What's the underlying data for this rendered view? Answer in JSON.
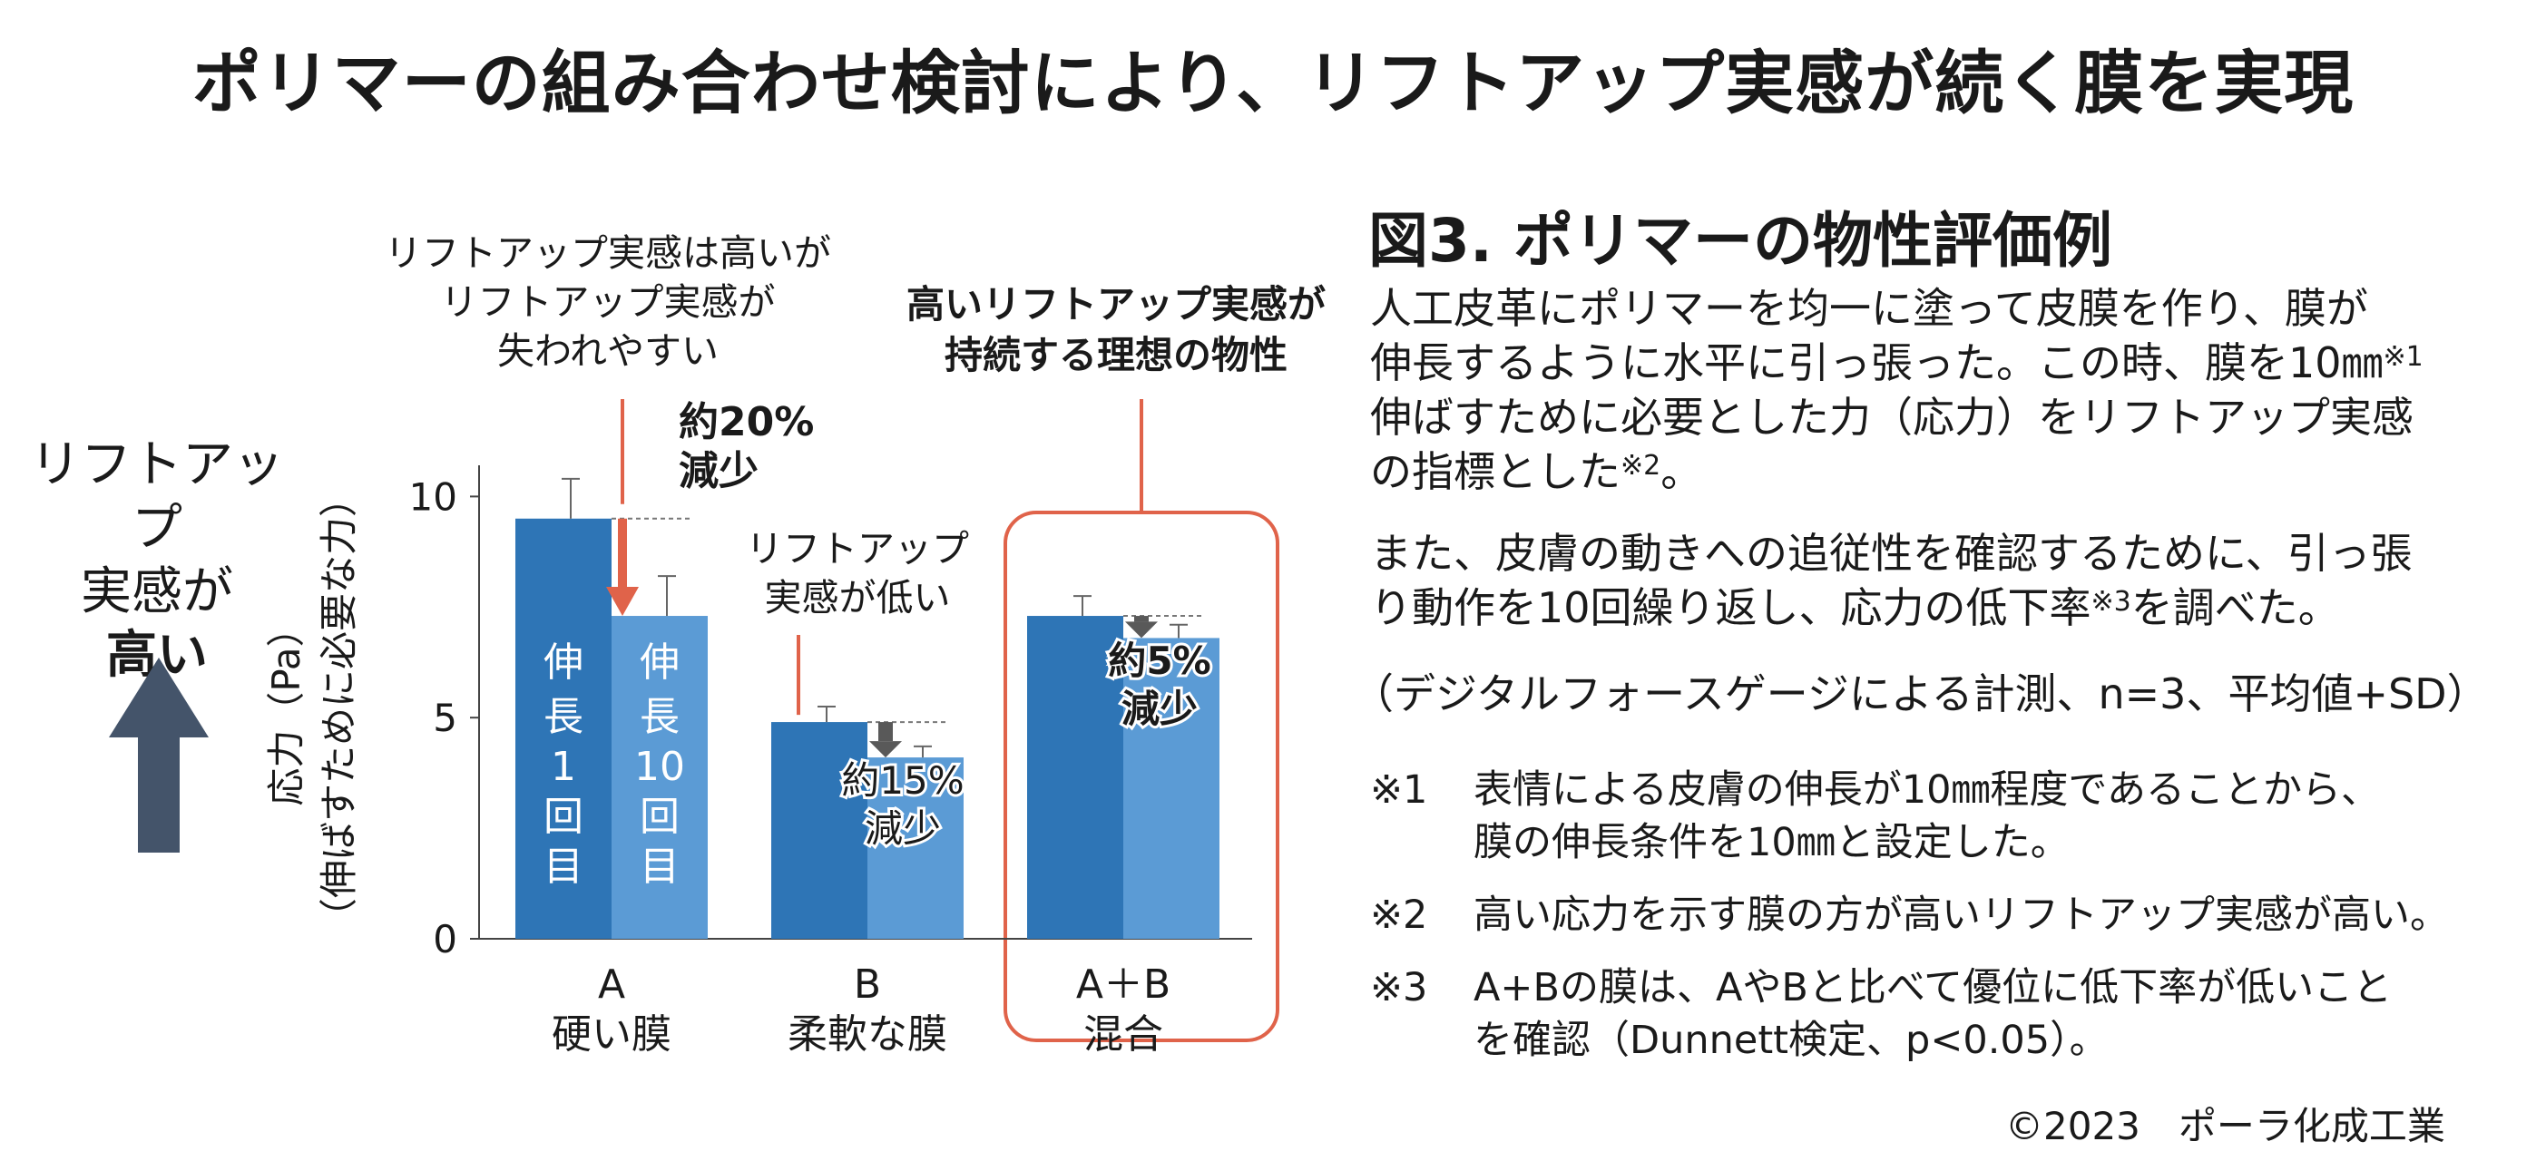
{
  "title": "ポリマーの組み合わせ検討により、リフトアップ実感が続く膜を実現",
  "side_label": {
    "line1": "リフトアップ",
    "line2": "実感が",
    "line3": "高い"
  },
  "colors": {
    "bar_dark": "#2E75B6",
    "bar_light": "#5B9BD5",
    "highlight": "#E0634A",
    "down_arrow": "#595959",
    "big_arrow": "#44546A"
  },
  "chart_data": {
    "type": "bar",
    "ylabel": "応力（Pa）",
    "ylabel_sub": "（伸ばすために必要な力）",
    "ylim": [
      0,
      10.5
    ],
    "yticks": [
      0,
      5,
      10
    ],
    "ytick_labels": [
      "0",
      "5",
      "10"
    ],
    "categories": [
      {
        "line1": "A",
        "line2": "硬い膜"
      },
      {
        "line1": "B",
        "line2": "柔軟な膜"
      },
      {
        "line1": "A＋B",
        "line2": "混合"
      }
    ],
    "series": [
      {
        "name": "伸長1回目",
        "values": [
          9.5,
          4.9,
          7.3
        ],
        "errors": [
          0.9,
          0.35,
          0.45
        ]
      },
      {
        "name": "伸長10回目",
        "values": [
          7.3,
          4.1,
          6.8
        ],
        "errors": [
          0.9,
          0.25,
          0.3
        ]
      }
    ],
    "bar_labels": {
      "first": [
        "伸",
        "長",
        "1",
        "回",
        "目"
      ],
      "tenth": [
        "伸",
        "長",
        "10",
        "回",
        "目"
      ]
    },
    "reductions": [
      {
        "line1": "約20%",
        "line2": "減少"
      },
      {
        "line1": "約15%",
        "line2": "減少"
      },
      {
        "line1": "約5%",
        "line2": "減少"
      }
    ],
    "annotations": {
      "a": {
        "line1": "リフトアップ実感は高いが",
        "line2": "リフトアップ実感が",
        "line3": "失われやすい"
      },
      "b": {
        "line1": "リフトアップ",
        "line2": "実感が低い"
      },
      "ab": {
        "line1": "高いリフトアップ実感が",
        "line2": "持続する理想の物性"
      }
    },
    "grid": false
  },
  "figure": {
    "title": "図3. ポリマーの物性評価例",
    "desc": {
      "l1": "人工皮革にポリマーを均一に塗って皮膜を作り、膜が",
      "l2": "伸長するように水平に引っ張った。この時、膜を10㎜",
      "l2_sup": "※1",
      "l3": "伸ばすために必要とした力（応力）をリフトアップ実感",
      "l4": "の指標とした",
      "l4_sup": "※2",
      "l4_end": "。",
      "l5": "また、皮膚の動きへの追従性を確認するために、引っ張",
      "l6": "り動作を10回繰り返し、応力の低下率",
      "l6_sup": "※3",
      "l6_end": "を調べた。",
      "method": "（デジタルフォースゲージによる計測、n=3、平均値+SD）"
    },
    "footnotes": [
      {
        "mark": "※1",
        "line1": "表情による皮膚の伸長が10㎜程度であることから、",
        "line2": "膜の伸長条件を10㎜と設定した。"
      },
      {
        "mark": "※2",
        "line1": "高い応力を示す膜の方が高いリフトアップ実感が高い。",
        "line2": ""
      },
      {
        "mark": "※3",
        "line1": "A+Bの膜は、AやBと比べて優位に低下率が低いこと",
        "line2": "を確認（Dunnett検定、p<0.05）。"
      }
    ]
  },
  "copyright": "©2023　ポーラ化成工業"
}
